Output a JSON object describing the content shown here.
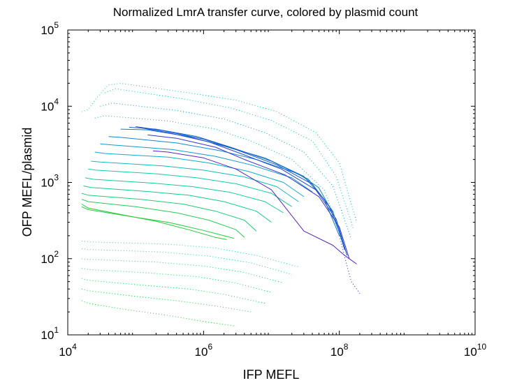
{
  "chart_data": {
    "type": "line",
    "title": "Normalized LmrA transfer curve, colored by plasmid count",
    "xlabel": "IFP MEFL",
    "ylabel": "OFP MEFL/plasmid",
    "x_scale": "log",
    "y_scale": "log",
    "xlim": [
      10000,
      10000000000
    ],
    "ylim": [
      10,
      100000
    ],
    "x_ticks": [
      {
        "value": 10000,
        "base": "10",
        "exp": "4"
      },
      {
        "value": 1000000,
        "base": "10",
        "exp": "6"
      },
      {
        "value": 100000000,
        "base": "10",
        "exp": "8"
      },
      {
        "value": 10000000000,
        "base": "10",
        "exp": "10"
      }
    ],
    "y_ticks": [
      {
        "value": 10,
        "base": "10",
        "exp": "1"
      },
      {
        "value": 100,
        "base": "10",
        "exp": "2"
      },
      {
        "value": 1000,
        "base": "10",
        "exp": "3"
      },
      {
        "value": 10000,
        "base": "10",
        "exp": "4"
      },
      {
        "value": 100000,
        "base": "10",
        "exp": "5"
      }
    ],
    "grid": false,
    "legend": "none",
    "color_scale": [
      "#22cc22",
      "#11ccaa",
      "#1166cc",
      "#6622cc"
    ],
    "series": [
      {
        "style": "dotted",
        "color": "#22dd44",
        "points": [
          [
            16000,
            28
          ],
          [
            20000,
            26
          ],
          [
            60000,
            22
          ],
          [
            300000,
            18
          ],
          [
            1000000,
            15
          ],
          [
            3000000,
            13
          ]
        ]
      },
      {
        "style": "dotted",
        "color": "#22dd55",
        "points": [
          [
            16000,
            40
          ],
          [
            20000,
            38
          ],
          [
            100000,
            32
          ],
          [
            400000,
            28
          ],
          [
            1500000,
            24
          ],
          [
            5000000,
            20
          ]
        ]
      },
      {
        "style": "dotted",
        "color": "#22dd66",
        "points": [
          [
            16000,
            55
          ],
          [
            20000,
            52
          ],
          [
            120000,
            45
          ],
          [
            600000,
            40
          ],
          [
            2000000,
            34
          ],
          [
            8000000,
            26
          ]
        ]
      },
      {
        "style": "dotted",
        "color": "#22dd77",
        "points": [
          [
            16000,
            75
          ],
          [
            20000,
            72
          ],
          [
            150000,
            65
          ],
          [
            800000,
            58
          ],
          [
            3000000,
            48
          ],
          [
            10000000,
            36
          ]
        ]
      },
      {
        "style": "dotted",
        "color": "#22dd88",
        "points": [
          [
            16000,
            100
          ],
          [
            20000,
            98
          ],
          [
            200000,
            90
          ],
          [
            1000000,
            80
          ],
          [
            4000000,
            66
          ],
          [
            15000000,
            48
          ]
        ]
      },
      {
        "style": "dotted",
        "color": "#22dd99",
        "points": [
          [
            16000,
            135
          ],
          [
            20000,
            132
          ],
          [
            250000,
            122
          ],
          [
            1200000,
            108
          ],
          [
            5000000,
            88
          ],
          [
            20000000,
            62
          ]
        ]
      },
      {
        "style": "dotted",
        "color": "#22ddaa",
        "points": [
          [
            16000,
            170
          ],
          [
            20000,
            166
          ],
          [
            300000,
            155
          ],
          [
            1500000,
            138
          ],
          [
            6000000,
            110
          ],
          [
            25000000,
            78
          ]
        ]
      },
      {
        "style": "solid",
        "color": "#22cc33",
        "points": [
          [
            16000,
            520
          ],
          [
            20000,
            460
          ],
          [
            60000,
            380
          ],
          [
            200000,
            310
          ],
          [
            600000,
            240
          ],
          [
            1500000,
            190
          ],
          [
            2200000,
            178
          ]
        ]
      },
      {
        "style": "solid",
        "color": "#22cc44",
        "points": [
          [
            16000,
            480
          ],
          [
            20000,
            440
          ],
          [
            80000,
            360
          ],
          [
            300000,
            300
          ],
          [
            900000,
            240
          ],
          [
            2000000,
            200
          ],
          [
            2800000,
            185
          ]
        ]
      },
      {
        "style": "solid",
        "color": "#22cc55",
        "points": [
          [
            16000,
            600
          ],
          [
            20000,
            560
          ],
          [
            100000,
            480
          ],
          [
            400000,
            400
          ],
          [
            1200000,
            320
          ],
          [
            3000000,
            240
          ],
          [
            4000000,
            190
          ]
        ]
      },
      {
        "style": "solid",
        "color": "#22cc77",
        "points": [
          [
            16000,
            720
          ],
          [
            20000,
            680
          ],
          [
            120000,
            600
          ],
          [
            500000,
            520
          ],
          [
            1500000,
            420
          ],
          [
            4000000,
            320
          ],
          [
            6000000,
            230
          ]
        ]
      },
      {
        "style": "solid",
        "color": "#11cc88",
        "points": [
          [
            17000,
            900
          ],
          [
            22000,
            860
          ],
          [
            150000,
            760
          ],
          [
            600000,
            680
          ],
          [
            2000000,
            560
          ],
          [
            6000000,
            420
          ],
          [
            10000000,
            300
          ]
        ]
      },
      {
        "style": "solid",
        "color": "#11cc99",
        "points": [
          [
            18000,
            1150
          ],
          [
            24000,
            1100
          ],
          [
            180000,
            980
          ],
          [
            700000,
            880
          ],
          [
            2500000,
            740
          ],
          [
            8000000,
            560
          ],
          [
            15000000,
            400
          ]
        ]
      },
      {
        "style": "solid",
        "color": "#11ccaa",
        "points": [
          [
            20000,
            1500
          ],
          [
            26000,
            1450
          ],
          [
            200000,
            1300
          ],
          [
            800000,
            1150
          ],
          [
            3000000,
            960
          ],
          [
            10000000,
            720
          ],
          [
            20000000,
            480
          ]
        ]
      },
      {
        "style": "solid",
        "color": "#11bbbb",
        "points": [
          [
            22000,
            1900
          ],
          [
            30000,
            1850
          ],
          [
            250000,
            1650
          ],
          [
            1000000,
            1450
          ],
          [
            4000000,
            1180
          ],
          [
            12000000,
            880
          ],
          [
            25000000,
            560
          ]
        ]
      },
      {
        "style": "solid",
        "color": "#11aacc",
        "points": [
          [
            25000,
            2500
          ],
          [
            35000,
            2400
          ],
          [
            300000,
            2150
          ],
          [
            1200000,
            1800
          ],
          [
            4500000,
            1400
          ],
          [
            15000000,
            1000
          ],
          [
            30000000,
            650
          ]
        ]
      },
      {
        "style": "solid",
        "color": "#1199cc",
        "points": [
          [
            30000,
            3200
          ],
          [
            45000,
            3100
          ],
          [
            350000,
            2700
          ],
          [
            1500000,
            2200
          ],
          [
            5000000,
            1700
          ],
          [
            20000000,
            1150
          ],
          [
            40000000,
            750
          ]
        ]
      },
      {
        "style": "solid",
        "color": "#1188cc",
        "points": [
          [
            40000,
            4000
          ],
          [
            60000,
            3900
          ],
          [
            400000,
            3300
          ],
          [
            1800000,
            2600
          ],
          [
            6000000,
            2000
          ],
          [
            25000000,
            1300
          ],
          [
            50000000,
            850
          ],
          [
            80000000,
            400
          ]
        ]
      },
      {
        "style": "solid",
        "color": "#1177cc",
        "points": [
          [
            60000,
            5000
          ],
          [
            150000,
            4900
          ],
          [
            600000,
            4000
          ],
          [
            2000000,
            3000
          ],
          [
            8000000,
            2100
          ],
          [
            30000000,
            1200
          ],
          [
            60000000,
            600
          ],
          [
            100000000,
            200
          ]
        ]
      },
      {
        "style": "solid",
        "color": "#1166cc",
        "points": [
          [
            80000,
            5300
          ],
          [
            200000,
            5000
          ],
          [
            800000,
            4000
          ],
          [
            2500000,
            2900
          ],
          [
            10000000,
            1900
          ],
          [
            35000000,
            1100
          ],
          [
            70000000,
            500
          ],
          [
            110000000,
            180
          ]
        ]
      },
      {
        "style": "solid",
        "color": "#1155cc",
        "points": [
          [
            100000,
            5400
          ],
          [
            250000,
            4800
          ],
          [
            1000000,
            3700
          ],
          [
            3000000,
            2700
          ],
          [
            12000000,
            1700
          ],
          [
            40000000,
            950
          ],
          [
            80000000,
            420
          ],
          [
            120000000,
            130
          ]
        ]
      },
      {
        "style": "solid",
        "color": "#2244cc",
        "points": [
          [
            120000,
            5200
          ],
          [
            300000,
            4500
          ],
          [
            1200000,
            3400
          ],
          [
            3500000,
            2400
          ],
          [
            14000000,
            1500
          ],
          [
            45000000,
            800
          ],
          [
            90000000,
            330
          ],
          [
            130000000,
            110
          ]
        ]
      },
      {
        "style": "solid",
        "color": "#3333cc",
        "points": [
          [
            150000,
            4200
          ],
          [
            400000,
            3800
          ],
          [
            1500000,
            2900
          ],
          [
            4000000,
            2000
          ],
          [
            16000000,
            1250
          ],
          [
            50000000,
            650
          ],
          [
            100000000,
            260
          ],
          [
            140000000,
            100
          ]
        ]
      },
      {
        "style": "solid",
        "color": "#5522cc",
        "points": [
          [
            180000,
            2600
          ],
          [
            300000,
            2500
          ],
          [
            1000000,
            2100
          ],
          [
            3000000,
            1500
          ],
          [
            10000000,
            800
          ],
          [
            30000000,
            230
          ],
          [
            80000000,
            150
          ],
          [
            120000000,
            110
          ],
          [
            180000000,
            85
          ]
        ]
      },
      {
        "style": "dotted",
        "color": "#11bbcc",
        "points": [
          [
            25000,
            7000
          ],
          [
            35000,
            7500
          ],
          [
            300000,
            6400
          ],
          [
            1500000,
            5000
          ],
          [
            5000000,
            3500
          ],
          [
            20000000,
            2000
          ],
          [
            60000000,
            800
          ],
          [
            120000000,
            150
          ]
        ]
      },
      {
        "style": "dotted",
        "color": "#11aacc",
        "points": [
          [
            30000,
            10000
          ],
          [
            45000,
            11000
          ],
          [
            400000,
            8800
          ],
          [
            2000000,
            6800
          ],
          [
            8000000,
            4500
          ],
          [
            30000000,
            2500
          ],
          [
            80000000,
            900
          ],
          [
            150000000,
            180
          ]
        ]
      },
      {
        "style": "dotted",
        "color": "#11cccc",
        "points": [
          [
            35000,
            15000
          ],
          [
            50000,
            17000
          ],
          [
            500000,
            12500
          ],
          [
            2500000,
            9500
          ],
          [
            10000000,
            6500
          ],
          [
            40000000,
            3500
          ],
          [
            90000000,
            1200
          ],
          [
            160000000,
            250
          ]
        ]
      },
      {
        "style": "dotted",
        "color": "#11cccc",
        "points": [
          [
            40000,
            19000
          ],
          [
            60000,
            20000
          ],
          [
            600000,
            15000
          ],
          [
            3000000,
            12000
          ],
          [
            12000000,
            8500
          ],
          [
            45000000,
            4500
          ],
          [
            100000000,
            1800
          ],
          [
            180000000,
            300
          ]
        ]
      },
      {
        "style": "dotted",
        "color": "#22ddaa",
        "points": [
          [
            16000,
            8500
          ],
          [
            20000,
            9000
          ],
          [
            25000,
            12000
          ],
          [
            35000,
            17000
          ],
          [
            40000,
            19000
          ]
        ]
      },
      {
        "style": "dotted",
        "color": "#2233cc",
        "points": [
          [
            100000000,
            200
          ],
          [
            130000000,
            80
          ],
          [
            150000000,
            50
          ],
          [
            200000000,
            35
          ]
        ]
      }
    ]
  }
}
